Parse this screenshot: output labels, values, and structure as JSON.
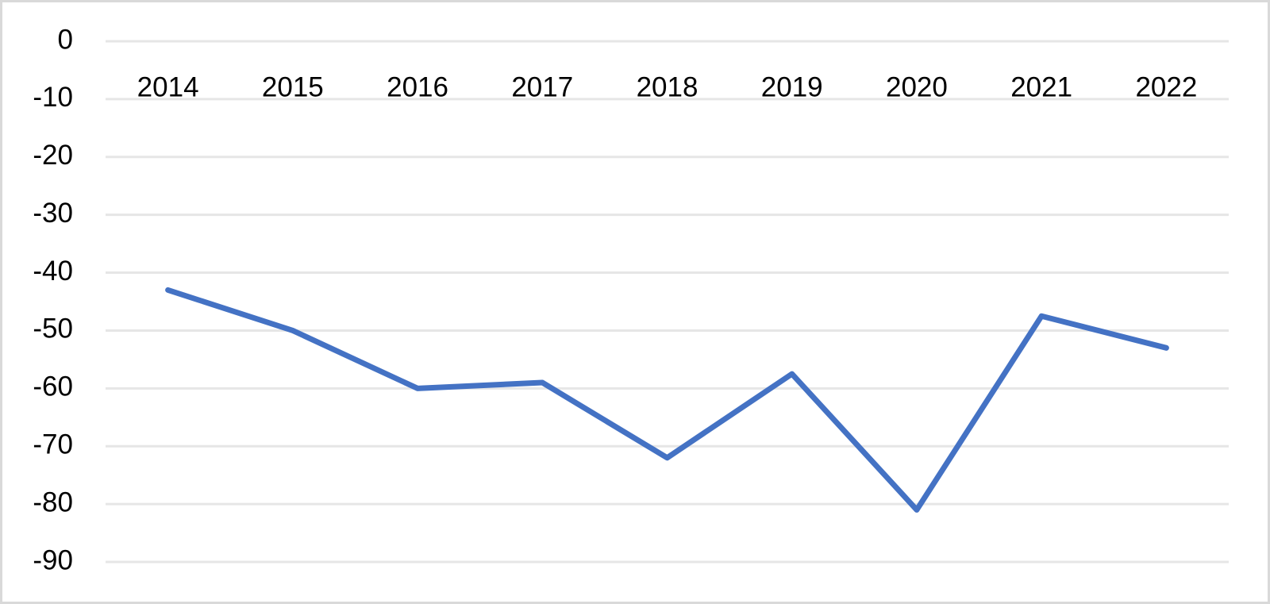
{
  "chart_data": {
    "type": "line",
    "categories": [
      "2014",
      "2015",
      "2016",
      "2017",
      "2018",
      "2019",
      "2020",
      "2021",
      "2022"
    ],
    "series": [
      {
        "color": "#4472c4",
        "values": [
          -43,
          -50,
          -60,
          -59,
          -72,
          -57.5,
          -81,
          -47.5,
          -53
        ]
      }
    ],
    "ylim": [
      -90,
      0
    ],
    "yticks": [
      0,
      -10,
      -20,
      -30,
      -40,
      -50,
      -60,
      -70,
      -80,
      -90
    ],
    "grid": true
  }
}
